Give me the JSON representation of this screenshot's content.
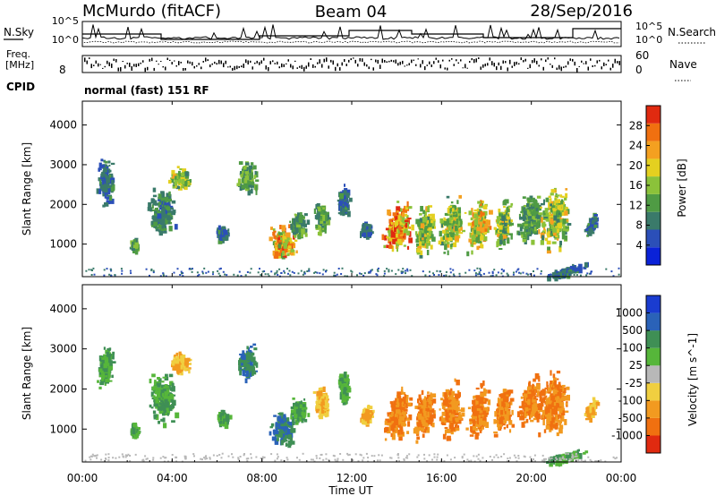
{
  "header": {
    "station": "McMurdo (fitACF)",
    "beam": "Beam 04",
    "date": "28/Sep/2016"
  },
  "strip": {
    "nsky_label": "N.Sky",
    "nsearch_label": "N.Search",
    "nsky_ticks": [
      "10^5",
      "10^0"
    ],
    "nsearch_ticks": [
      "10^5",
      "10^0"
    ],
    "freq_label": "Freq.",
    "freq_unit": "[MHz]",
    "freq_ticks": [
      "8"
    ],
    "nave_label": "Nave",
    "nave_ticks": [
      "60",
      "0"
    ],
    "cpid_label": "CPID",
    "cpid_text": "normal (fast) 151 RF"
  },
  "x_axis": {
    "title": "Time UT",
    "ticks": [
      "00:00",
      "04:00",
      "08:00",
      "12:00",
      "16:00",
      "20:00",
      "00:00"
    ]
  },
  "chart_data": [
    {
      "type": "heatmap",
      "panel": "power",
      "ylabel": "Slant Range [km]",
      "y_ticks": [
        "1000",
        "2000",
        "3000",
        "4000"
      ],
      "ylim": [
        180,
        4600
      ],
      "xlim_hours": [
        0,
        24
      ],
      "colorbar": {
        "label": "Power [dB]",
        "ticks": [
          "4",
          "8",
          "12",
          "16",
          "20",
          "24",
          "28"
        ],
        "range": [
          0,
          32
        ],
        "colors": [
          "#0a22d8",
          "#2b4fb8",
          "#3a7a6a",
          "#4f9b44",
          "#8bc23a",
          "#e4d020",
          "#f4a020",
          "#f07010",
          "#e02a10"
        ]
      },
      "blobs": [
        {
          "t": 1.0,
          "r": 2600,
          "dt": 0.5,
          "dr": 900,
          "v": 8
        },
        {
          "t": 2.3,
          "r": 1000,
          "dt": 0.3,
          "dr": 250,
          "v": 12
        },
        {
          "t": 3.5,
          "r": 1800,
          "dt": 0.9,
          "dr": 900,
          "v": 10
        },
        {
          "t": 4.3,
          "r": 2700,
          "dt": 0.7,
          "dr": 400,
          "v": 16
        },
        {
          "t": 6.2,
          "r": 1300,
          "dt": 0.4,
          "dr": 300,
          "v": 8
        },
        {
          "t": 7.3,
          "r": 2700,
          "dt": 0.7,
          "dr": 600,
          "v": 12
        },
        {
          "t": 8.9,
          "r": 1050,
          "dt": 0.9,
          "dr": 650,
          "v": 22
        },
        {
          "t": 9.6,
          "r": 1500,
          "dt": 0.6,
          "dr": 500,
          "v": 12
        },
        {
          "t": 10.6,
          "r": 1700,
          "dt": 0.5,
          "dr": 600,
          "v": 12
        },
        {
          "t": 11.6,
          "r": 2100,
          "dt": 0.4,
          "dr": 600,
          "v": 8
        },
        {
          "t": 12.6,
          "r": 1400,
          "dt": 0.4,
          "dr": 300,
          "v": 8
        },
        {
          "t": 14.0,
          "r": 1450,
          "dt": 0.9,
          "dr": 900,
          "v": 24
        },
        {
          "t": 15.2,
          "r": 1400,
          "dt": 0.7,
          "dr": 900,
          "v": 16
        },
        {
          "t": 16.4,
          "r": 1500,
          "dt": 0.8,
          "dr": 1000,
          "v": 16
        },
        {
          "t": 17.6,
          "r": 1500,
          "dt": 0.7,
          "dr": 1000,
          "v": 20
        },
        {
          "t": 18.7,
          "r": 1500,
          "dt": 0.6,
          "dr": 900,
          "v": 16
        },
        {
          "t": 19.9,
          "r": 1700,
          "dt": 0.8,
          "dr": 900,
          "v": 12
        },
        {
          "t": 21.0,
          "r": 1700,
          "dt": 1.0,
          "dr": 1200,
          "v": 16
        },
        {
          "t": 22.6,
          "r": 1500,
          "dt": 0.4,
          "dr": 300,
          "v": 8
        },
        {
          "t": 21.5,
          "r": 350,
          "dt": 1.5,
          "dr": 150,
          "v": 8
        }
      ]
    },
    {
      "type": "heatmap",
      "panel": "velocity",
      "ylabel": "Slant Range [km]",
      "y_ticks": [
        "1000",
        "2000",
        "3000",
        "4000"
      ],
      "ylim": [
        180,
        4600
      ],
      "xlim_hours": [
        0,
        24
      ],
      "colorbar": {
        "label": "Velocity [m s^-1]",
        "ticks": [
          "1000",
          "500",
          "100",
          "25",
          "-25",
          "-100",
          "-500",
          "-1000"
        ],
        "colors": [
          "#1a3cd0",
          "#2a62b8",
          "#3f8f55",
          "#56b63a",
          "#b8b8b8",
          "#f0cf40",
          "#f29a20",
          "#f07010",
          "#e02a10"
        ]
      },
      "blobs": [
        {
          "t": 1.0,
          "r": 2600,
          "dt": 0.5,
          "dr": 900,
          "v": 100
        },
        {
          "t": 2.3,
          "r": 1000,
          "dt": 0.3,
          "dr": 250,
          "v": 100
        },
        {
          "t": 3.5,
          "r": 1800,
          "dt": 0.9,
          "dr": 900,
          "v": 100
        },
        {
          "t": 4.3,
          "r": 2700,
          "dt": 0.7,
          "dr": 400,
          "v": -100
        },
        {
          "t": 6.2,
          "r": 1300,
          "dt": 0.4,
          "dr": 300,
          "v": 100
        },
        {
          "t": 7.3,
          "r": 2700,
          "dt": 0.7,
          "dr": 600,
          "v": 500
        },
        {
          "t": 8.9,
          "r": 1050,
          "dt": 0.9,
          "dr": 650,
          "v": 500
        },
        {
          "t": 9.6,
          "r": 1500,
          "dt": 0.6,
          "dr": 500,
          "v": 100
        },
        {
          "t": 10.6,
          "r": 1700,
          "dt": 0.5,
          "dr": 600,
          "v": -100
        },
        {
          "t": 11.6,
          "r": 2100,
          "dt": 0.4,
          "dr": 600,
          "v": 100
        },
        {
          "t": 12.6,
          "r": 1400,
          "dt": 0.4,
          "dr": 300,
          "v": -100
        },
        {
          "t": 14.0,
          "r": 1450,
          "dt": 0.9,
          "dr": 900,
          "v": -500
        },
        {
          "t": 15.2,
          "r": 1400,
          "dt": 0.7,
          "dr": 900,
          "v": -500
        },
        {
          "t": 16.4,
          "r": 1500,
          "dt": 0.8,
          "dr": 1000,
          "v": -500
        },
        {
          "t": 17.6,
          "r": 1500,
          "dt": 0.7,
          "dr": 1000,
          "v": -500
        },
        {
          "t": 18.7,
          "r": 1500,
          "dt": 0.6,
          "dr": 900,
          "v": -500
        },
        {
          "t": 19.9,
          "r": 1700,
          "dt": 0.8,
          "dr": 900,
          "v": -500
        },
        {
          "t": 21.0,
          "r": 1700,
          "dt": 1.0,
          "dr": 1200,
          "v": -500
        },
        {
          "t": 22.6,
          "r": 1500,
          "dt": 0.4,
          "dr": 300,
          "v": -100
        },
        {
          "t": 21.5,
          "r": 350,
          "dt": 1.5,
          "dr": 150,
          "v": 100
        }
      ]
    }
  ]
}
